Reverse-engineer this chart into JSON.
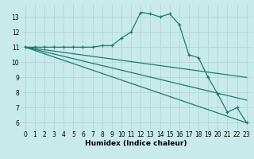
{
  "xlabel": "Humidex (Indice chaleur)",
  "background_color": "#c8eaea",
  "grid_color": "#b8d8d8",
  "line_color": "#1a7a6e",
  "xlim": [
    -0.5,
    23.5
  ],
  "ylim": [
    5.5,
    13.8
  ],
  "yticks": [
    6,
    7,
    8,
    9,
    10,
    11,
    12,
    13
  ],
  "xticks": [
    0,
    1,
    2,
    3,
    4,
    5,
    6,
    7,
    8,
    9,
    10,
    11,
    12,
    13,
    14,
    15,
    16,
    17,
    18,
    19,
    20,
    21,
    22,
    23
  ],
  "main_line": {
    "x": [
      0,
      1,
      2,
      3,
      4,
      5,
      6,
      7,
      8,
      9,
      10,
      11,
      12,
      13,
      14,
      15,
      16,
      17,
      18,
      19,
      20,
      21,
      22,
      23
    ],
    "y": [
      11,
      11,
      11,
      11,
      11,
      11,
      11,
      11,
      11.1,
      11.1,
      11.6,
      12.0,
      13.3,
      13.2,
      13.0,
      13.2,
      12.5,
      10.5,
      10.3,
      9.0,
      7.9,
      6.7,
      7.0,
      6.0
    ]
  },
  "fan_lines": [
    {
      "x": [
        0,
        23
      ],
      "y": [
        11,
        9.0
      ]
    },
    {
      "x": [
        0,
        23
      ],
      "y": [
        11,
        7.5
      ]
    },
    {
      "x": [
        0,
        23
      ],
      "y": [
        11,
        6.0
      ]
    }
  ]
}
